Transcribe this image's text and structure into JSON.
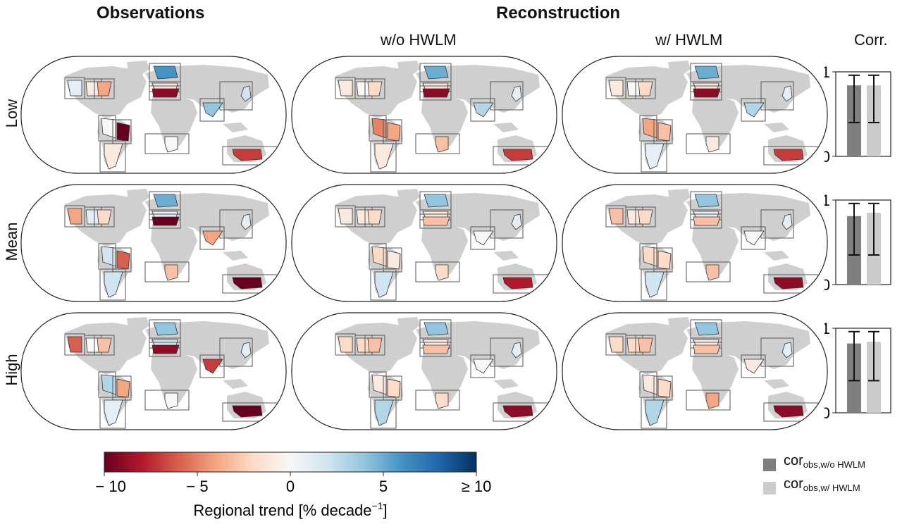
{
  "headers": {
    "observations": "Observations",
    "reconstruction": "Reconstruction",
    "without_hwlm": "w/o HWLM",
    "with_hwlm": "w/ HWLM",
    "corr": "Corr."
  },
  "row_labels": [
    "Low",
    "Mean",
    "High"
  ],
  "colorbar": {
    "tick_labels": [
      "≤ − 10",
      "− 5",
      "0",
      "5",
      "≥ 10"
    ],
    "tick_values": [
      -10,
      -5,
      0,
      5,
      10
    ],
    "label_main": "Regional trend [% decade",
    "label_sup": "−1",
    "label_end": "]",
    "colors": [
      "#67001f",
      "#b2182b",
      "#d6604d",
      "#f4a582",
      "#fddbc7",
      "#f7f7f7",
      "#d1e5f0",
      "#92c5de",
      "#4393c3",
      "#2166ac",
      "#053061"
    ]
  },
  "legend": {
    "items": [
      {
        "main": "cor",
        "sub": "obs,w/o HWLM",
        "color": "#7f7f7f"
      },
      {
        "main": "cor",
        "sub": "obs,w/ HWLM",
        "color": "#cccccc"
      }
    ]
  },
  "maps": {
    "region_order": [
      "western_north_america",
      "central_north_america",
      "eastern_north_america",
      "northern_europe",
      "central_europe",
      "mediterranean",
      "east_asia",
      "west_asia",
      "south_america_north",
      "south_america_east",
      "south_america_south",
      "southern_africa",
      "australia"
    ],
    "rows": [
      [
        [
          1,
          -1,
          -4,
          6,
          -1,
          -9,
          2,
          4,
          0,
          -10,
          -1,
          0,
          -7
        ],
        [
          -1,
          0,
          -2,
          5,
          -1,
          -9,
          1,
          3,
          -5,
          -4,
          -1,
          -3,
          -7
        ],
        [
          -1,
          0,
          -2,
          5,
          -1,
          -9,
          1,
          3,
          -4,
          -3,
          1,
          -1,
          -7
        ]
      ],
      [
        [
          -4,
          1,
          -2,
          5,
          1,
          -10,
          1,
          -4,
          2,
          -6,
          2,
          -3,
          -10
        ],
        [
          -1,
          -1,
          -2,
          4,
          -1,
          -3,
          1,
          0,
          -2,
          -1,
          2,
          -2,
          -8
        ],
        [
          -3,
          -1,
          -2,
          4,
          1,
          -3,
          1,
          0,
          -2,
          -2,
          2,
          -3,
          -9
        ]
      ],
      [
        [
          -6,
          0,
          -3,
          4,
          2,
          -9,
          1,
          -7,
          3,
          -4,
          1,
          0,
          -10
        ],
        [
          -2,
          -2,
          -3,
          4,
          -1,
          -3,
          1,
          0,
          -1,
          -2,
          3,
          -2,
          -9
        ],
        [
          -2,
          -2,
          -3,
          4,
          -1,
          -3,
          1,
          -1,
          -1,
          -2,
          3,
          -4,
          -9
        ]
      ]
    ]
  },
  "chart_data": {
    "type": "bar",
    "title": "Corr.",
    "categories": [
      "Low",
      "Mean",
      "High"
    ],
    "series": [
      {
        "name": "cor obs,w/o HWLM",
        "values": [
          0.84,
          0.81,
          0.82
        ],
        "error_low": [
          0.4,
          0.35,
          0.38
        ],
        "error_high": [
          0.96,
          0.96,
          0.96
        ]
      },
      {
        "name": "cor obs,w/ HWLM",
        "values": [
          0.84,
          0.85,
          0.84
        ],
        "error_low": [
          0.4,
          0.35,
          0.38
        ],
        "error_high": [
          0.96,
          0.96,
          0.96
        ]
      }
    ],
    "ylim": [
      0,
      1
    ],
    "yticks": [
      "0",
      "1"
    ]
  }
}
